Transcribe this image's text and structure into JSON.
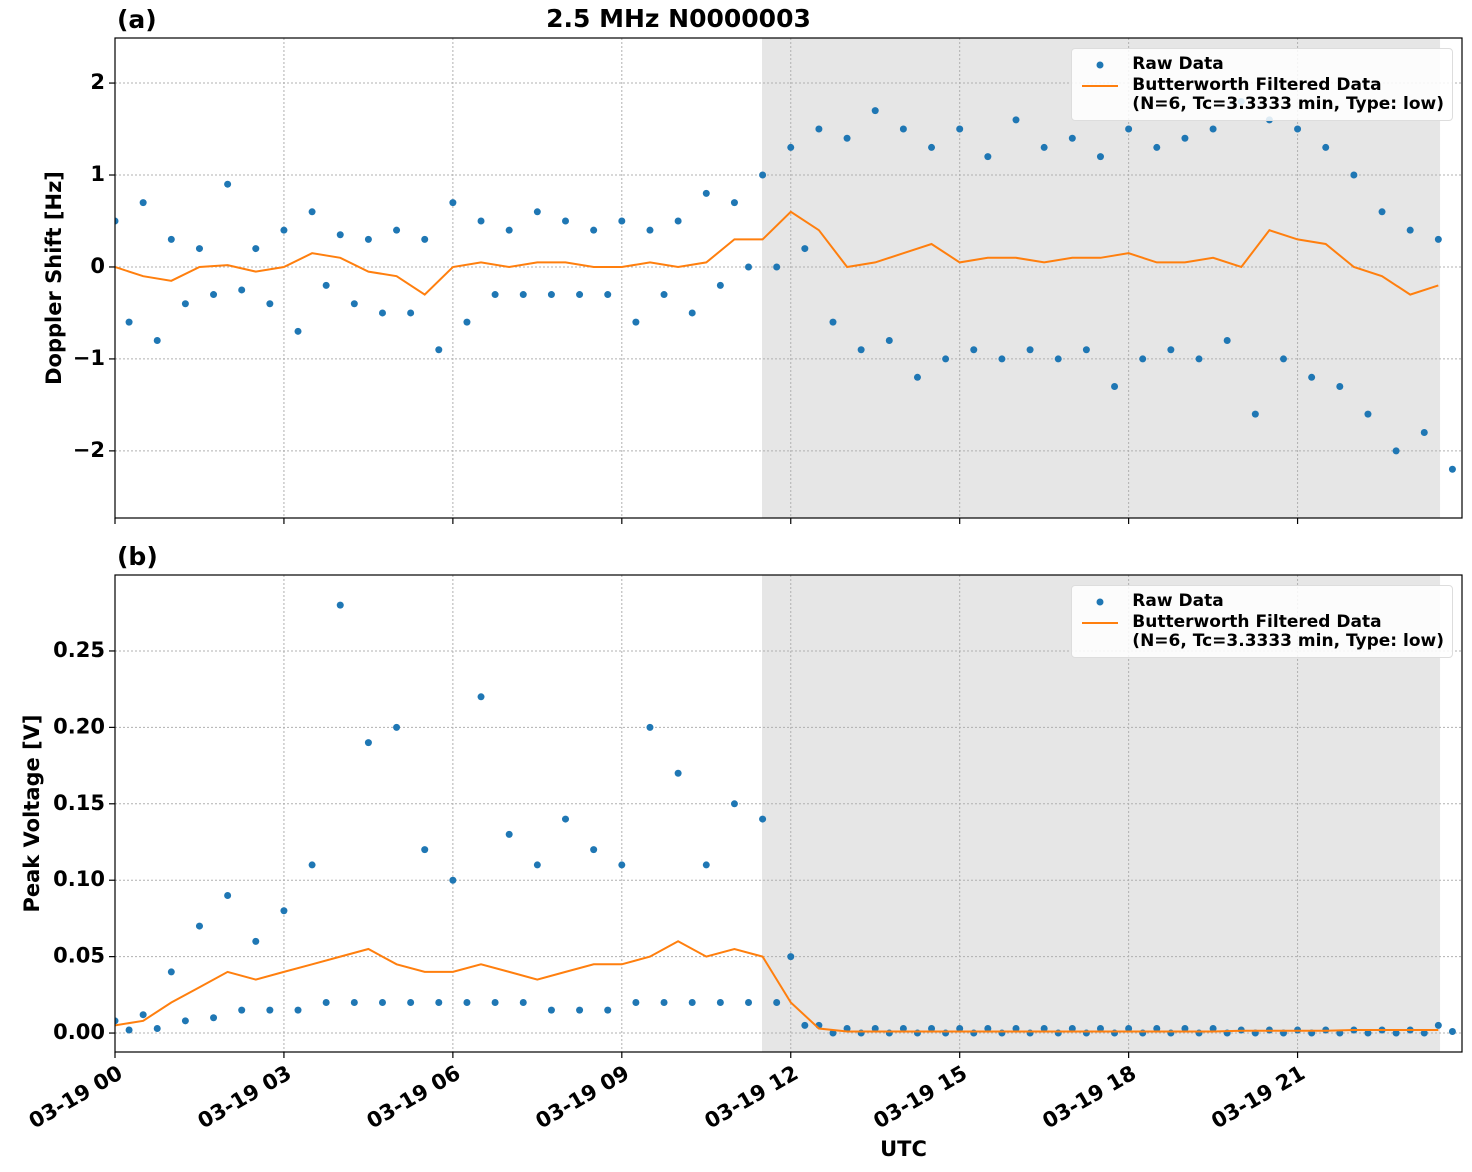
{
  "chart_data": [
    {
      "type": "line",
      "title": "2.5 MHz N0000003",
      "panel_label": "(a)",
      "ylabel": "Doppler Shift [Hz]",
      "xlim": [
        0,
        23.92
      ],
      "ylim": [
        -2.73,
        2.49
      ],
      "yticks": [
        {
          "value": -2,
          "label": "−2"
        },
        {
          "value": -1,
          "label": "−1"
        },
        0,
        1,
        2
      ],
      "grid": true,
      "legend": "upper right",
      "shade": [
        11.49,
        23.53
      ],
      "series": [
        {
          "name": "Raw Data",
          "color": "#1f77b4",
          "style": "markers",
          "x": [
            0,
            0.25,
            0.5,
            0.75,
            1,
            1.25,
            1.5,
            1.75,
            2,
            2.25,
            2.5,
            2.75,
            3,
            3.25,
            3.5,
            3.75,
            4,
            4.25,
            4.5,
            4.75,
            5,
            5.25,
            5.5,
            5.75,
            6,
            6.25,
            6.5,
            6.75,
            7,
            7.25,
            7.5,
            7.75,
            8,
            8.25,
            8.5,
            8.75,
            9,
            9.25,
            9.5,
            9.75,
            10,
            10.25,
            10.5,
            10.75,
            11,
            11.25,
            11.5,
            11.75,
            12,
            12.25,
            12.5,
            12.75,
            13,
            13.25,
            13.5,
            13.75,
            14,
            14.25,
            14.5,
            14.75,
            15,
            15.25,
            15.5,
            15.75,
            16,
            16.25,
            16.5,
            16.75,
            17,
            17.25,
            17.5,
            17.75,
            18,
            18.25,
            18.5,
            18.75,
            19,
            19.25,
            19.5,
            19.75,
            20,
            20.25,
            20.5,
            20.75,
            21,
            21.25,
            21.5,
            21.75,
            22,
            22.25,
            22.5,
            22.75,
            23,
            23.25,
            23.5,
            23.75
          ],
          "values": [
            0.5,
            -0.6,
            0.7,
            -0.8,
            0.3,
            -0.4,
            0.2,
            -0.3,
            0.9,
            -0.25,
            0.2,
            -0.4,
            0.4,
            -0.7,
            0.6,
            -0.2,
            0.35,
            -0.4,
            0.3,
            -0.5,
            0.4,
            -0.5,
            0.3,
            -0.9,
            0.7,
            -0.6,
            0.5,
            -0.3,
            0.4,
            -0.3,
            0.6,
            -0.3,
            0.5,
            -0.3,
            0.4,
            -0.3,
            0.5,
            -0.6,
            0.4,
            -0.3,
            0.5,
            -0.5,
            0.8,
            -0.2,
            0.7,
            0.0,
            1.0,
            0.0,
            1.3,
            0.2,
            1.5,
            -0.6,
            1.4,
            -0.9,
            1.7,
            -0.8,
            1.5,
            -1.2,
            1.3,
            -1.0,
            1.5,
            -0.9,
            1.2,
            -1.0,
            1.6,
            -0.9,
            1.3,
            -1.0,
            1.4,
            -0.9,
            1.2,
            -1.3,
            1.5,
            -1.0,
            1.3,
            -0.9,
            1.4,
            -1.0,
            1.5,
            -0.8,
            1.8,
            -1.6,
            1.6,
            -1.0,
            1.5,
            -1.2,
            1.3,
            -1.3,
            1.0,
            -1.6,
            0.6,
            -2.0,
            0.4,
            -1.8,
            0.3,
            -2.2
          ]
        },
        {
          "name": "Butterworth Filtered Data\n(N=6, Tc=3.3333 min, Type: low)",
          "color": "#ff7f0e",
          "style": "line",
          "x": [
            0,
            0.5,
            1,
            1.5,
            2,
            2.5,
            3,
            3.5,
            4,
            4.5,
            5,
            5.5,
            6,
            6.5,
            7,
            7.5,
            8,
            8.5,
            9,
            9.5,
            10,
            10.5,
            11,
            11.5,
            12,
            12.5,
            13,
            13.5,
            14,
            14.5,
            15,
            15.5,
            16,
            16.5,
            17,
            17.5,
            18,
            18.5,
            19,
            19.5,
            20,
            20.5,
            21,
            21.5,
            22,
            22.5,
            23,
            23.5
          ],
          "values": [
            0.0,
            -0.1,
            -0.15,
            0.0,
            0.02,
            -0.05,
            0.0,
            0.15,
            0.1,
            -0.05,
            -0.1,
            -0.3,
            0.0,
            0.05,
            0.0,
            0.05,
            0.05,
            0.0,
            0.0,
            0.05,
            0.0,
            0.05,
            0.3,
            0.3,
            0.6,
            0.4,
            0.0,
            0.05,
            0.15,
            0.25,
            0.05,
            0.1,
            0.1,
            0.05,
            0.1,
            0.1,
            0.15,
            0.05,
            0.05,
            0.1,
            0.0,
            0.4,
            0.3,
            0.25,
            0.0,
            -0.1,
            -0.3,
            -0.2
          ]
        }
      ]
    },
    {
      "type": "line",
      "panel_label": "(b)",
      "ylabel": "Peak Voltage [V]",
      "xlabel": "UTC",
      "xlim": [
        0,
        23.92
      ],
      "ylim": [
        -0.0124,
        0.2997
      ],
      "xticks": [
        {
          "value": 0,
          "label": "03-19 00"
        },
        {
          "value": 3,
          "label": "03-19 03"
        },
        {
          "value": 6,
          "label": "03-19 06"
        },
        {
          "value": 9,
          "label": "03-19 09"
        },
        {
          "value": 12,
          "label": "03-19 12"
        },
        {
          "value": 15,
          "label": "03-19 15"
        },
        {
          "value": 18,
          "label": "03-19 18"
        },
        {
          "value": 21,
          "label": "03-19 21"
        }
      ],
      "yticks": [
        {
          "value": 0,
          "label": "0.00"
        },
        {
          "value": 0.05,
          "label": "0.05"
        },
        {
          "value": 0.1,
          "label": "0.10"
        },
        {
          "value": 0.15,
          "label": "0.15"
        },
        {
          "value": 0.2,
          "label": "0.20"
        },
        {
          "value": 0.25,
          "label": "0.25"
        }
      ],
      "grid": true,
      "legend": "upper right",
      "shade": [
        11.49,
        23.53
      ],
      "series": [
        {
          "name": "Raw Data",
          "color": "#1f77b4",
          "style": "markers",
          "x": [
            0,
            0.25,
            0.5,
            0.75,
            1,
            1.25,
            1.5,
            1.75,
            2,
            2.25,
            2.5,
            2.75,
            3,
            3.25,
            3.5,
            3.75,
            4,
            4.25,
            4.5,
            4.75,
            5,
            5.25,
            5.5,
            5.75,
            6,
            6.25,
            6.5,
            6.75,
            7,
            7.25,
            7.5,
            7.75,
            8,
            8.25,
            8.5,
            8.75,
            9,
            9.25,
            9.5,
            9.75,
            10,
            10.25,
            10.5,
            10.75,
            11,
            11.25,
            11.5,
            11.75,
            12,
            12.25,
            12.5,
            12.75,
            13,
            13.25,
            13.5,
            13.75,
            14,
            14.25,
            14.5,
            14.75,
            15,
            15.25,
            15.5,
            15.75,
            16,
            16.25,
            16.5,
            16.75,
            17,
            17.25,
            17.5,
            17.75,
            18,
            18.25,
            18.5,
            18.75,
            19,
            19.25,
            19.5,
            19.75,
            20,
            20.25,
            20.5,
            20.75,
            21,
            21.25,
            21.5,
            21.75,
            22,
            22.25,
            22.5,
            22.75,
            23,
            23.25,
            23.5,
            23.75
          ],
          "values": [
            0.008,
            0.002,
            0.012,
            0.003,
            0.04,
            0.008,
            0.07,
            0.01,
            0.09,
            0.015,
            0.06,
            0.015,
            0.08,
            0.015,
            0.11,
            0.02,
            0.28,
            0.02,
            0.19,
            0.02,
            0.2,
            0.02,
            0.12,
            0.02,
            0.1,
            0.02,
            0.22,
            0.02,
            0.13,
            0.02,
            0.11,
            0.015,
            0.14,
            0.015,
            0.12,
            0.015,
            0.11,
            0.02,
            0.2,
            0.02,
            0.17,
            0.02,
            0.11,
            0.02,
            0.15,
            0.02,
            0.14,
            0.02,
            0.05,
            0.005,
            0.005,
            0.0,
            0.003,
            0.0,
            0.003,
            0.0,
            0.003,
            0.0,
            0.003,
            0.0,
            0.003,
            0.0,
            0.003,
            0.0,
            0.003,
            0.0,
            0.003,
            0.0,
            0.003,
            0.0,
            0.003,
            0.0,
            0.003,
            0.0,
            0.003,
            0.0,
            0.003,
            0.0,
            0.003,
            0.0,
            0.002,
            0.0,
            0.002,
            0.0,
            0.002,
            0.0,
            0.002,
            0.0,
            0.002,
            0.0,
            0.002,
            0.0,
            0.002,
            0.0,
            0.005,
            0.001
          ]
        },
        {
          "name": "Butterworth Filtered Data\n(N=6, Tc=3.3333 min, Type: low)",
          "color": "#ff7f0e",
          "style": "line",
          "x": [
            0,
            0.5,
            1,
            1.5,
            2,
            2.5,
            3,
            3.5,
            4,
            4.5,
            5,
            5.5,
            6,
            6.5,
            7,
            7.5,
            8,
            8.5,
            9,
            9.5,
            10,
            10.5,
            11,
            11.5,
            12,
            12.5,
            13,
            13.5,
            14,
            14.5,
            15,
            15.5,
            16,
            16.5,
            17,
            17.5,
            18,
            18.5,
            19,
            19.5,
            20,
            20.5,
            21,
            21.5,
            22,
            22.5,
            23,
            23.5
          ],
          "values": [
            0.005,
            0.008,
            0.02,
            0.03,
            0.04,
            0.035,
            0.04,
            0.045,
            0.05,
            0.055,
            0.045,
            0.04,
            0.04,
            0.045,
            0.04,
            0.035,
            0.04,
            0.045,
            0.045,
            0.05,
            0.06,
            0.05,
            0.055,
            0.05,
            0.02,
            0.003,
            0.001,
            0.001,
            0.001,
            0.001,
            0.001,
            0.001,
            0.001,
            0.001,
            0.001,
            0.001,
            0.001,
            0.001,
            0.001,
            0.001,
            0.0015,
            0.0015,
            0.0015,
            0.0015,
            0.002,
            0.002,
            0.002,
            0.002
          ]
        }
      ]
    }
  ]
}
